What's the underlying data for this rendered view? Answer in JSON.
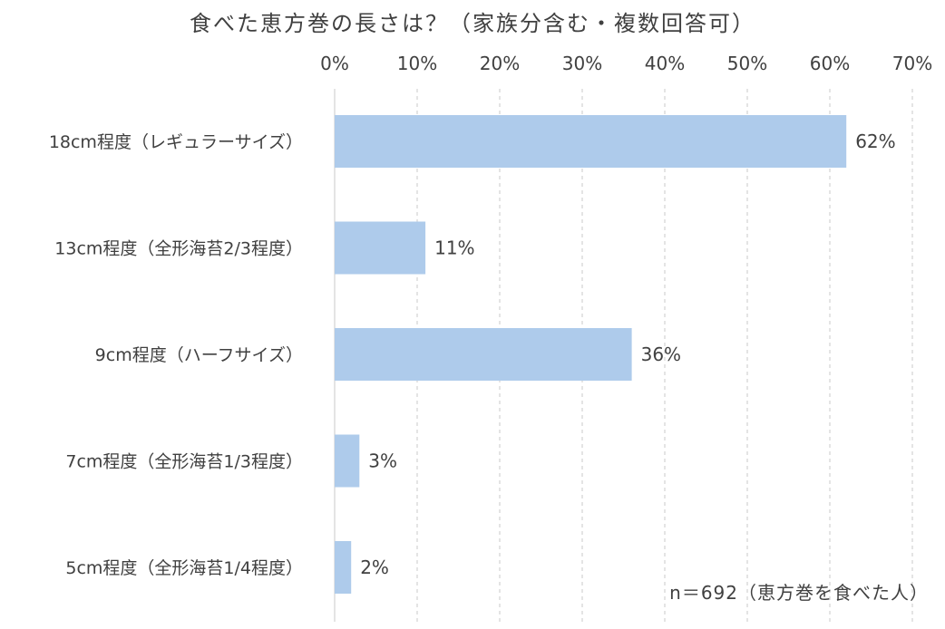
{
  "chart_data": {
    "type": "bar",
    "orientation": "horizontal",
    "title": "食べた恵方巻の長さは？（家族分含む・複数回答可）",
    "categories": [
      "18cm程度（レギュラーサイズ）",
      "13cm程度（全形海苔2/3程度）",
      "9cm程度（ハーフサイズ）",
      "7cm程度（全形海苔1/3程度）",
      "5cm程度（全形海苔1/4程度）"
    ],
    "values": [
      62,
      11,
      36,
      3,
      2
    ],
    "value_labels": [
      "62%",
      "11%",
      "36%",
      "3%",
      "2%"
    ],
    "xlim": [
      0,
      70
    ],
    "x_ticks": [
      "0%",
      "10%",
      "20%",
      "30%",
      "40%",
      "50%",
      "60%",
      "70%"
    ],
    "x_axis_position": "top",
    "grid": true,
    "bar_color": "#aecbeb",
    "note": "n＝692（恵方巻を食べた人）"
  }
}
